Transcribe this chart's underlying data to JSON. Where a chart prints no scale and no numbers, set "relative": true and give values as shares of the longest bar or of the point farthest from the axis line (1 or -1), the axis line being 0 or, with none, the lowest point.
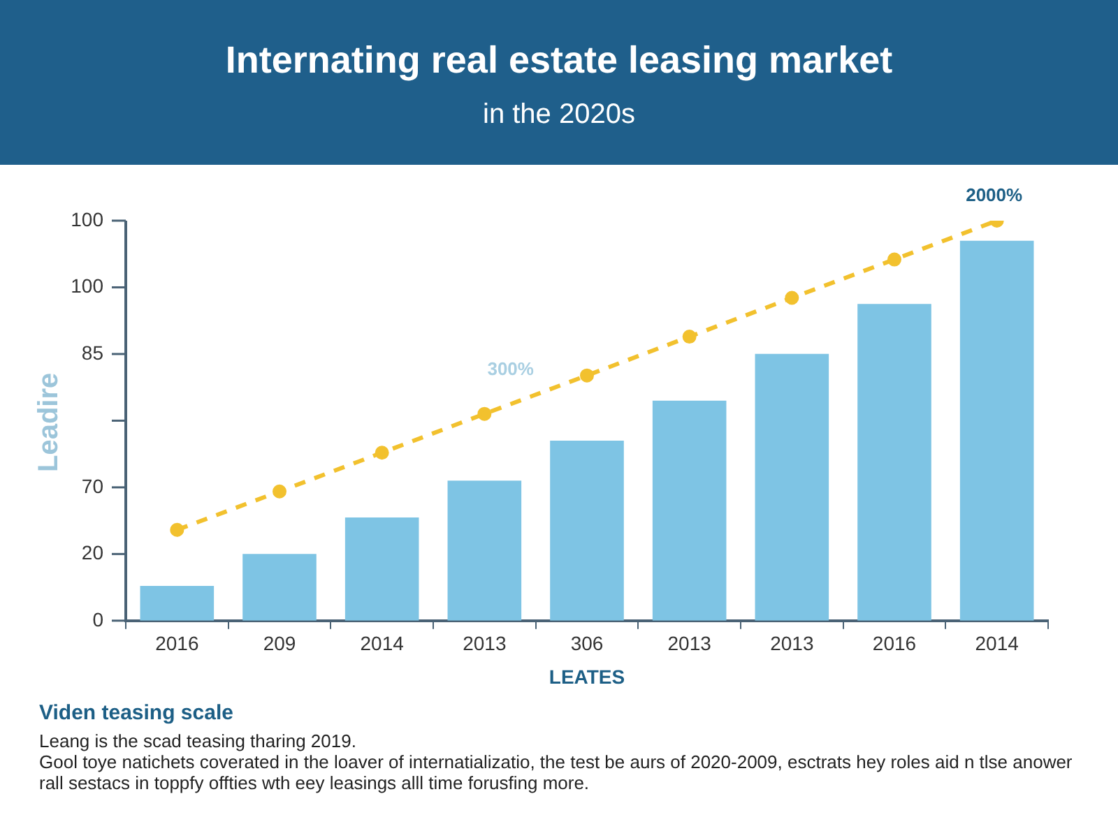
{
  "chart_data": {
    "type": "bar",
    "relative": true,
    "title": "Internating real estate leasing market",
    "subtitle": "in the 2020s",
    "xlabel": "LEATES",
    "ylabel": "Leadire",
    "categories": [
      "2016",
      "209",
      "2014",
      "2013",
      "306",
      "2013",
      "2013",
      "2016",
      "2014"
    ],
    "series": [
      {
        "color": "#7ec4e4",
        "values": [
          0.087,
          0.167,
          0.258,
          0.35,
          0.45,
          0.55,
          0.667,
          0.792,
          0.95
        ]
      },
      {
        "type": "line",
        "color": "#f2c12e",
        "values": [
          0.227,
          0.323,
          0.42,
          0.517,
          0.613,
          0.71,
          0.807,
          0.903,
          1.0
        ]
      }
    ],
    "grid": false,
    "legend": false,
    "marker": "circle",
    "line_style": "dashed",
    "annotations": [
      "0",
      "20",
      "70",
      "85",
      "100",
      "100",
      "300%",
      "2000%",
      "Viden teasing scale",
      "Leang is the scad teasing tharing 2019.",
      "Gool toye natichets coverated in the loaver of internatializatio, the test be aurs of 2020-2009, esctrats hey roles aid n tlse anower rall sestacs in toppfy offties wth eey leasings alll time forusfing more."
    ]
  }
}
